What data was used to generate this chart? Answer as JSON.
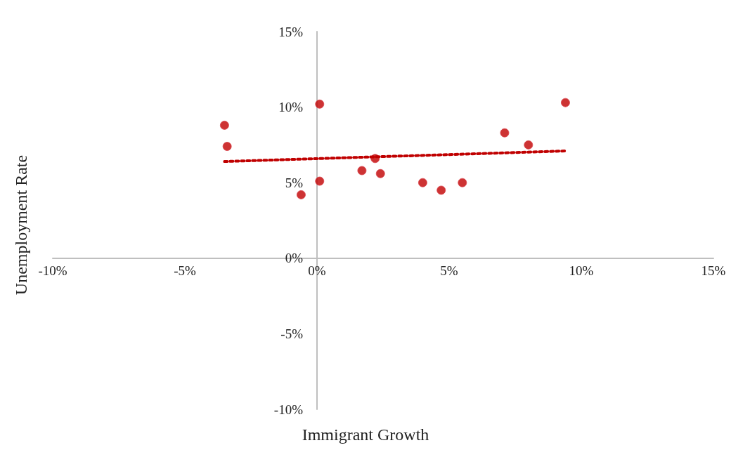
{
  "chart_data": {
    "type": "scatter",
    "xlabel": "Immigrant Growth",
    "ylabel": "Unemployment Rate",
    "xlim": [
      -10,
      15
    ],
    "ylim": [
      -10,
      15
    ],
    "xticks": [
      {
        "value": -10,
        "label": "-10%"
      },
      {
        "value": -5,
        "label": "-5%"
      },
      {
        "value": 0,
        "label": "0%"
      },
      {
        "value": 5,
        "label": "5%"
      },
      {
        "value": 10,
        "label": "10%"
      },
      {
        "value": 15,
        "label": "15%"
      }
    ],
    "yticks": [
      {
        "value": -10,
        "label": "-10%"
      },
      {
        "value": -5,
        "label": "-5%"
      },
      {
        "value": 0,
        "label": "0%"
      },
      {
        "value": 5,
        "label": "5%"
      },
      {
        "value": 10,
        "label": "10%"
      },
      {
        "value": 15,
        "label": "15%"
      }
    ],
    "series": [
      {
        "color": "#c00000",
        "marker": "circle",
        "x": [
          -3.5,
          -3.4,
          0.1,
          -0.6,
          0.1,
          1.7,
          2.2,
          2.4,
          4.0,
          4.7,
          5.5,
          7.1,
          8.0,
          9.4
        ],
        "values": [
          8.8,
          7.4,
          10.2,
          4.2,
          5.1,
          5.8,
          6.6,
          5.6,
          5.0,
          4.5,
          5.0,
          8.3,
          7.5,
          10.3
        ]
      },
      {
        "type": "line",
        "color": "#c00000",
        "marker": "none",
        "line_style": "dotted",
        "x": [
          -3.5,
          9.4
        ],
        "values": [
          6.4,
          7.1
        ]
      }
    ]
  }
}
